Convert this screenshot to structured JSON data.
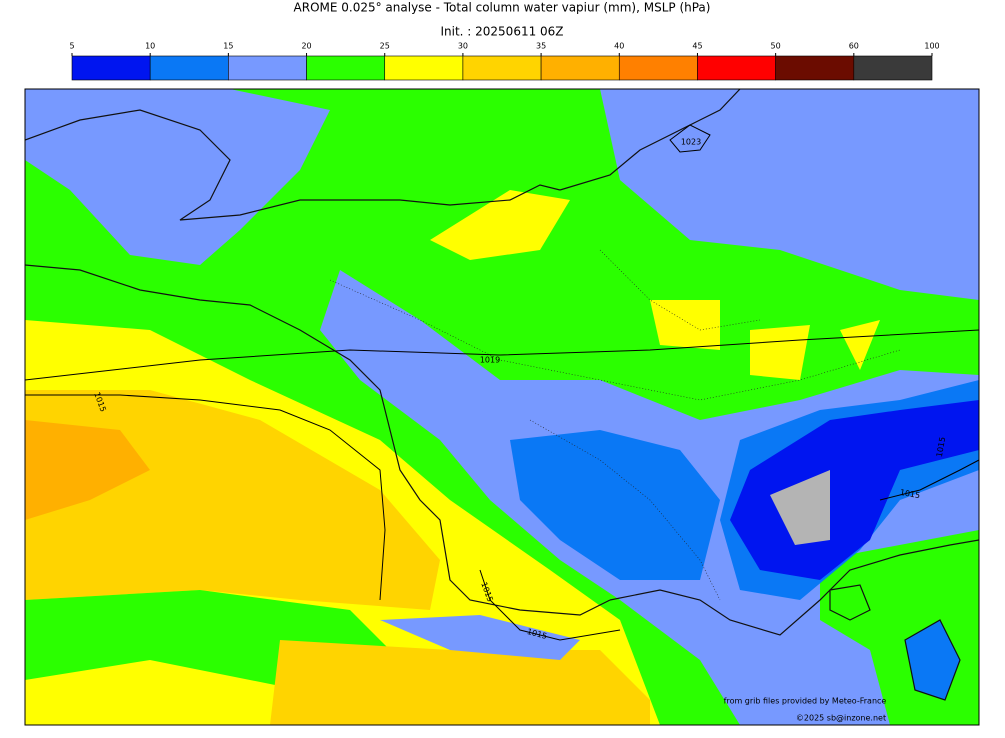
{
  "header": {
    "title": "AROME 0.025° analyse - Total column water vapiur (mm), MSLP (hPa)",
    "init": "Init. : 20250611 06Z"
  },
  "colorbar": {
    "ticks": [
      5,
      10,
      15,
      20,
      25,
      30,
      35,
      40,
      45,
      50,
      60,
      100
    ],
    "colors": [
      "#0015f0",
      "#0a78f5",
      "#7799ff",
      "#2bff00",
      "#ffff00",
      "#ffd400",
      "#ffb000",
      "#ff8000",
      "#ff0000",
      "#6b0c00",
      "#3a3a3a"
    ]
  },
  "isobar_labels": [
    "1023",
    "1019",
    "1015",
    "1015",
    "1015",
    "1015",
    "1015"
  ],
  "credits": [
    "from grib files provided by Meteo-France",
    "©2025 sb@inzone.net"
  ]
}
